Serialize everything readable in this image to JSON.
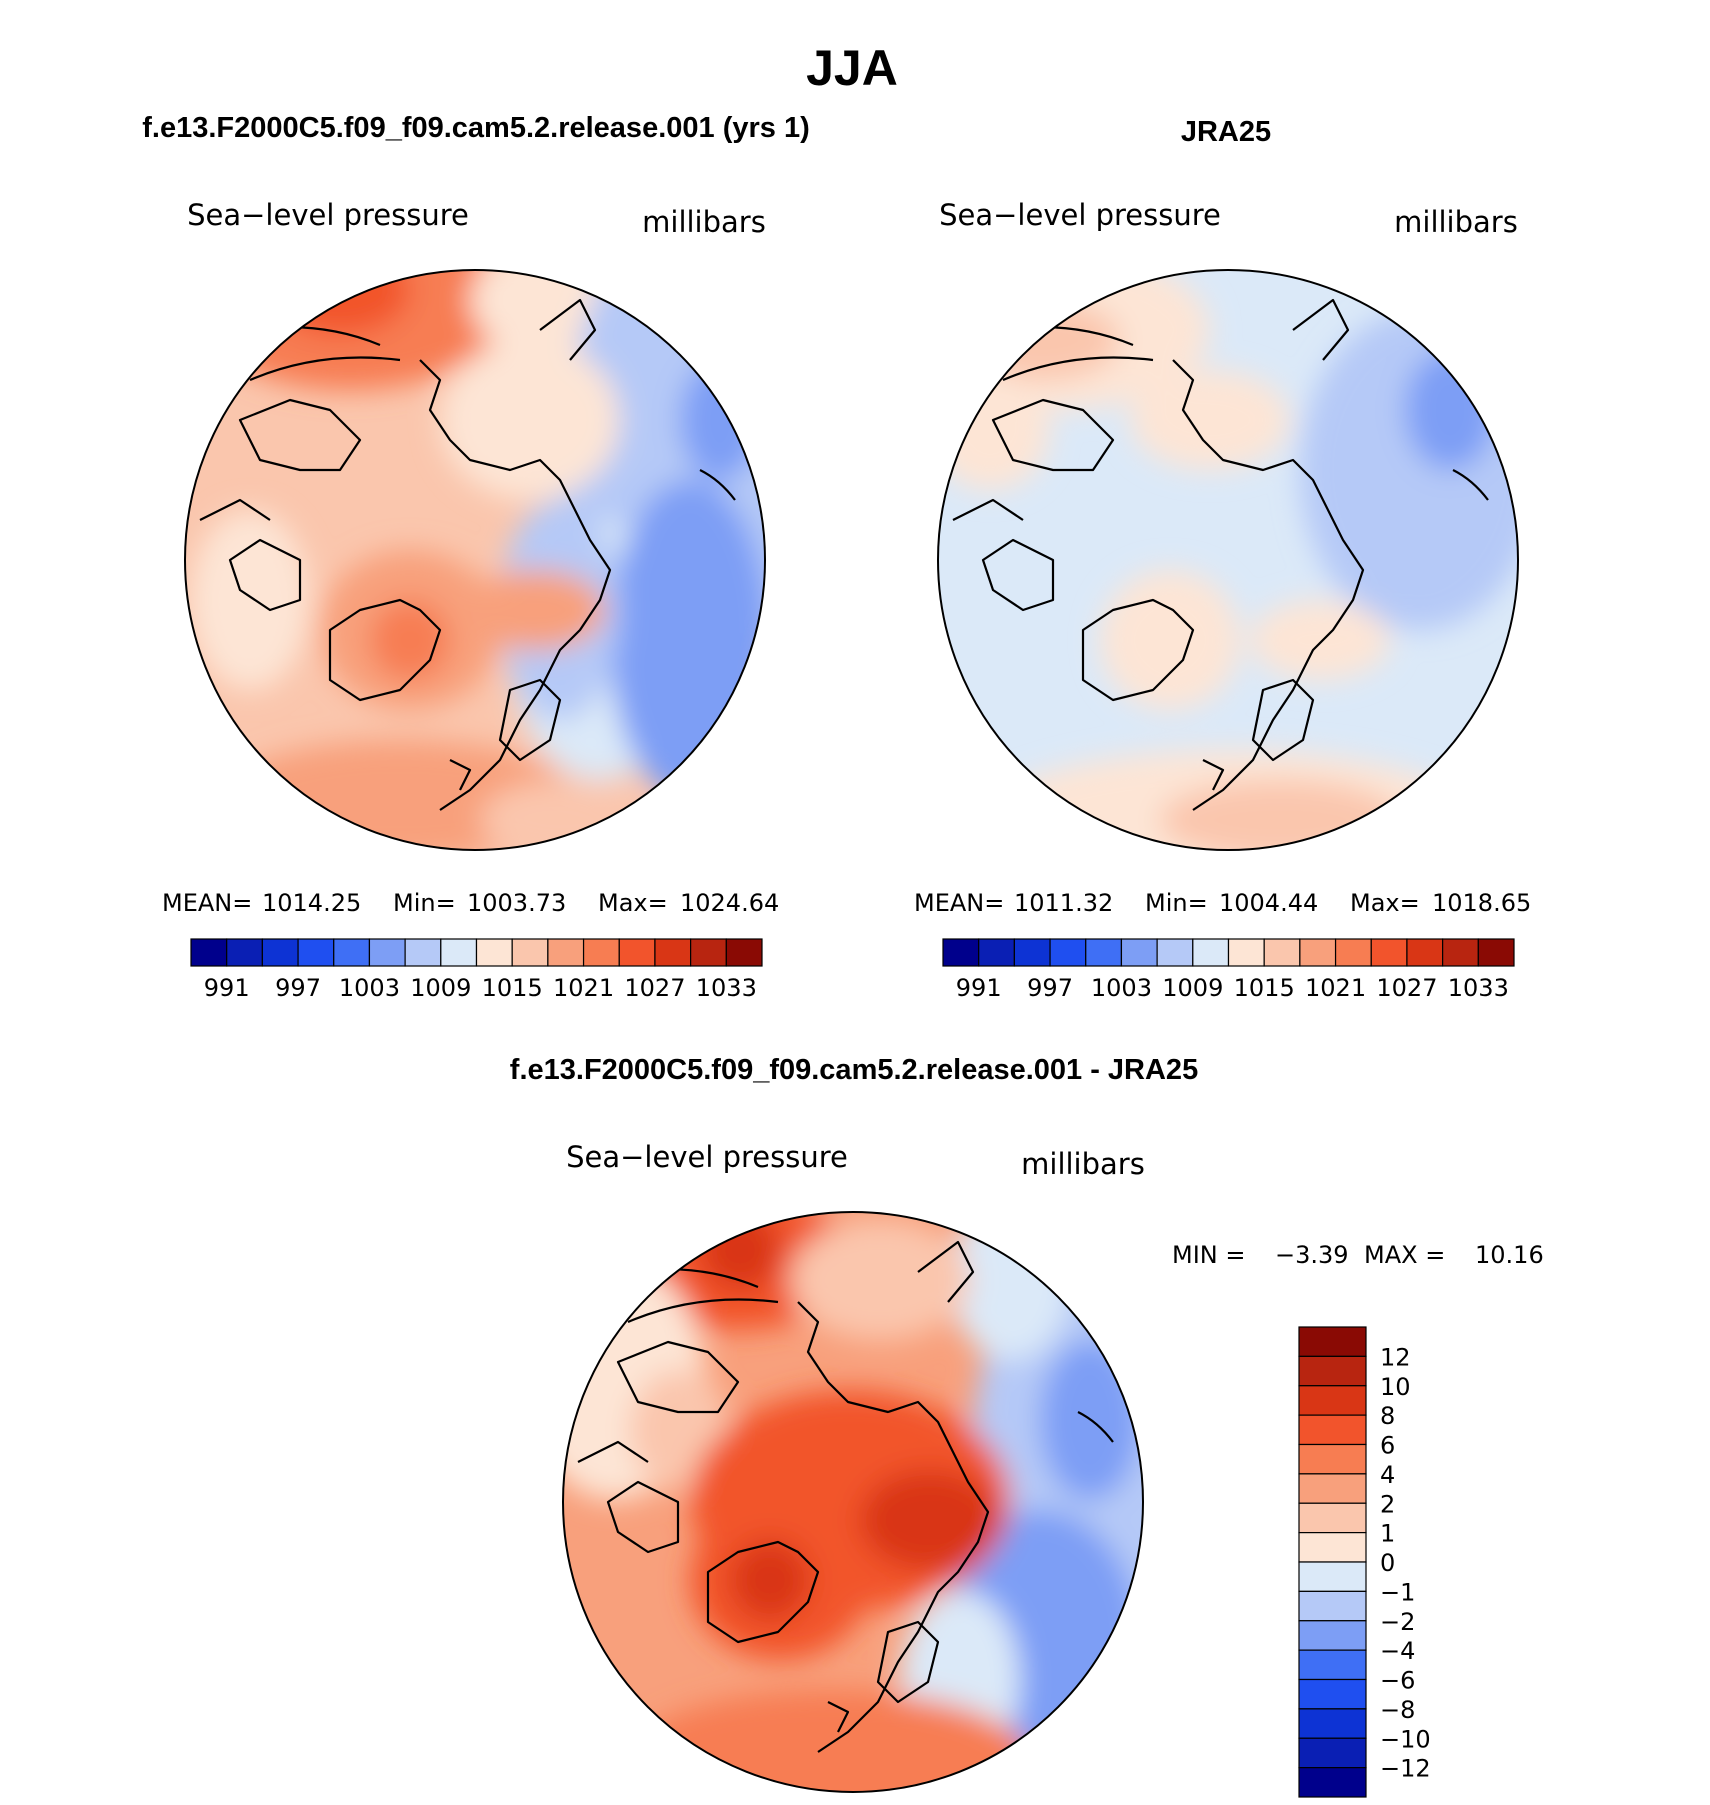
{
  "figure": {
    "season_title": "JJA"
  },
  "panels": [
    {
      "id": "model",
      "case_title": "f.e13.F2000C5.f09_f09.cam5.2.release.001 (yrs 1)",
      "variable_label": "Sea−level pressure",
      "units_label": "millibars",
      "stats": {
        "mean_label": "MEAN=",
        "mean": "1014.25",
        "min_label": "Min=",
        "min": "1003.73",
        "max_label": "Max=",
        "max": "1024.64"
      }
    },
    {
      "id": "obs",
      "case_title": "JRA25",
      "variable_label": "Sea−level pressure",
      "units_label": "millibars",
      "stats": {
        "mean_label": "MEAN=",
        "mean": "1011.32",
        "min_label": "Min=",
        "min": "1004.44",
        "max_label": "Max=",
        "max": "1018.65"
      }
    },
    {
      "id": "diff",
      "case_title": "f.e13.F2000C5.f09_f09.cam5.2.release.001 - JRA25",
      "variable_label": "Sea−level pressure",
      "units_label": "millibars",
      "stats": {
        "min_label": "MIN =",
        "min": "−3.39",
        "max_label": "MAX =",
        "max": "10.16"
      }
    }
  ],
  "colorbars": {
    "absolute": {
      "colors": [
        "#00008c",
        "#0a1fb4",
        "#0d33d4",
        "#1f4ff0",
        "#3f6ff5",
        "#7d9ef5",
        "#b5c9f7",
        "#dbe9f8",
        "#fde5d5",
        "#fac6ad",
        "#f8a07c",
        "#f77d52",
        "#f2542c",
        "#d93615",
        "#b82510",
        "#8a0a04"
      ],
      "tick_labels": [
        "991",
        "997",
        "1003",
        "1009",
        "1015",
        "1021",
        "1027",
        "1033"
      ]
    },
    "difference": {
      "colors": [
        "#00008c",
        "#0a1fb4",
        "#0d33d4",
        "#1f4ff0",
        "#3f6ff5",
        "#7d9ef5",
        "#b5c9f7",
        "#dbe9f8",
        "#fde5d5",
        "#fac6ad",
        "#f8a07c",
        "#f77d52",
        "#f2542c",
        "#d93615",
        "#b82510",
        "#8a0a04"
      ],
      "tick_labels": [
        "12",
        "10",
        "8",
        "6",
        "4",
        "2",
        "1",
        "0",
        "−1",
        "−2",
        "−4",
        "−6",
        "−8",
        "−10",
        "−12"
      ]
    }
  }
}
